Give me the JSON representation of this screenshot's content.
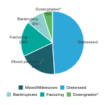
{
  "chart_data": {
    "type": "pie",
    "categories": [
      "Distressed",
      "Mixed payment\n19%",
      "Factoring\n18%",
      "Bankruptcy\n9%",
      "Downgrades*\n5%"
    ],
    "values": [
      49,
      19,
      18,
      9,
      5
    ],
    "colors": [
      "#2da8d8",
      "#1a5f6a",
      "#00a89c",
      "#8ecece",
      "#5cb85c"
    ],
    "legend": "bottom",
    "legend_entries": [
      {
        "name": "Mixed/Milestones",
        "color": "#1a5f6a"
      },
      {
        "name": "Distressed",
        "color": "#2da8d8"
      },
      {
        "name": "Bankruptcies",
        "color": "#8ecece"
      },
      {
        "name": "Factoring",
        "color": "#00a89c"
      },
      {
        "name": "Downgrades*",
        "color": "#5cb85c"
      }
    ]
  }
}
